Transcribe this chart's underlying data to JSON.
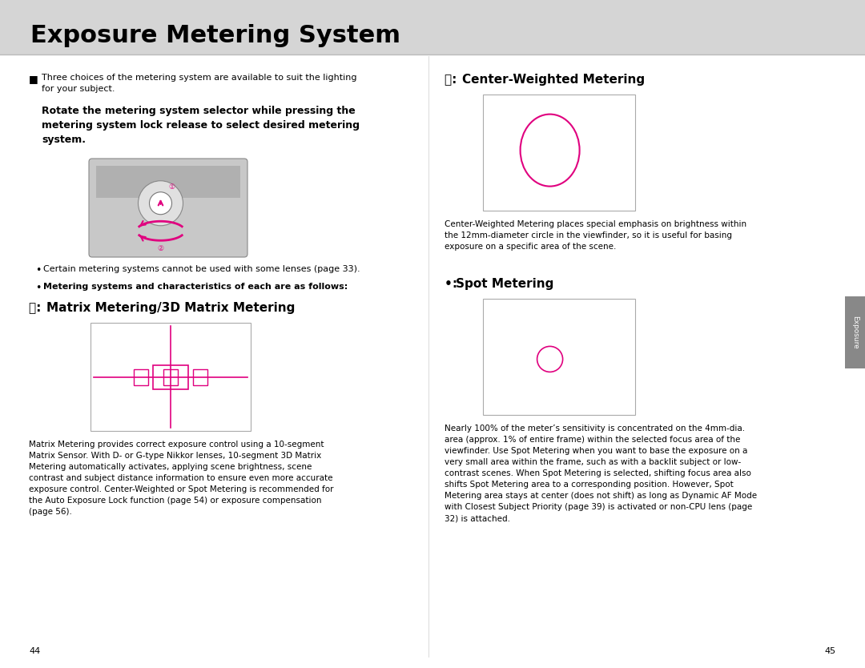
{
  "title": "Exposure Metering System",
  "title_bg_color": "#d5d5d5",
  "page_bg_color": "#ffffff",
  "magenta_color": "#e0007f",
  "gray_border_color": "#aaaaaa",
  "text_color": "#000000",
  "header_text": "Exposure Metering System",
  "matrix_title": "Matrix Metering/3D Matrix Metering",
  "matrix_icon": "ⓢ",
  "matrix_desc": "Matrix Metering provides correct exposure control using a 10-segment\nMatrix Sensor. With D- or G-type Nikkor lenses, 10-segment 3D Matrix\nMetering automatically activates, applying scene brightness, scene\ncontrast and subject distance information to ensure even more accurate\nexposure control. Center-Weighted or Spot Metering is recommended for\nthe Auto Exposure Lock function (page 54) or exposure compensation\n(page 56).",
  "cw_title": "Center-Weighted Metering",
  "cw_icon": "ⓦ",
  "cw_desc": "Center-Weighted Metering places special emphasis on brightness within\nthe 12mm-diameter circle in the viewfinder, so it is useful for basing\nexposure on a specific area of the scene.",
  "spot_title": "Spot Metering",
  "spot_icon": "•",
  "spot_desc": "Nearly 100% of the meter’s sensitivity is concentrated on the 4mm-dia.\narea (approx. 1% of entire frame) within the selected focus area of the\nviewfinder. Use Spot Metering when you want to base the exposure on a\nvery small area within the frame, such as with a backlit subject or low-\ncontrast scenes. When Spot Metering is selected, shifting focus area also\nshifts Spot Metering area to a corresponding position. However, Spot\nMetering area stays at center (does not shift) as long as Dynamic AF Mode\nwith Closest Subject Priority (page 39) is activated or non-CPU lens (page\n32) is attached.",
  "bullet1": "Three choices of the metering system are available to suit the lighting for your subject.",
  "bold_text1": "Rotate the metering system selector while pressing the",
  "bold_text2": "metering system lock release to select desired metering",
  "bold_text3": "system.",
  "bullet2": "Certain metering systems cannot be used with some lenses (page 33).",
  "bullet3": "Metering systems and characteristics of each are as follows:",
  "page_left": "44",
  "page_right": "45",
  "tab_color": "#888888",
  "tab_text": "Exposure"
}
